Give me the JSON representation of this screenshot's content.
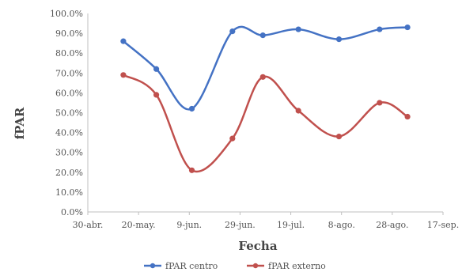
{
  "chart_data": {
    "type": "line",
    "xlabel": "Fecha",
    "ylabel": "fPAR",
    "x_tick_labels": [
      "30-abr.",
      "20-may.",
      "9-jun.",
      "29-jun.",
      "19-jul.",
      "8-ago.",
      "28-ago.",
      "17-sep."
    ],
    "x_range_days": [
      0,
      140
    ],
    "y_tick_labels": [
      "0.0%",
      "10.0%",
      "20.0%",
      "30.0%",
      "40.0%",
      "50.0%",
      "60.0%",
      "70.0%",
      "80.0%",
      "90.0%",
      "100.0%"
    ],
    "ylim": [
      0,
      100
    ],
    "grid": false,
    "legend_position": "bottom",
    "smooth": true,
    "series": [
      {
        "name": "fPAR centro",
        "color": "#4472C4",
        "x": [
          "14-may.",
          "27-may.",
          "10-jun.",
          "26-jun.",
          "8-jul.",
          "22-jul.",
          "7-ago.",
          "23-ago.",
          "3-sep."
        ],
        "x_days": [
          14,
          27,
          41,
          57,
          69,
          83,
          99,
          115,
          126
        ],
        "values": [
          86,
          72,
          52,
          91,
          89,
          92,
          87,
          92,
          93
        ]
      },
      {
        "name": "fPAR externo",
        "color": "#C0504D",
        "x": [
          "14-may.",
          "27-may.",
          "10-jun.",
          "26-jun.",
          "8-jul.",
          "22-jul.",
          "7-ago.",
          "23-ago.",
          "3-sep."
        ],
        "x_days": [
          14,
          27,
          41,
          57,
          69,
          83,
          99,
          115,
          126
        ],
        "values": [
          69,
          59,
          21,
          37,
          68,
          51,
          38,
          55,
          48
        ]
      }
    ]
  }
}
